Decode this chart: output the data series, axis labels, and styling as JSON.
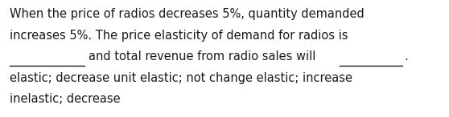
{
  "background_color": "#ffffff",
  "text_color": "#1a1a1a",
  "line0": "When the price of radios decreases 5%, quantity demanded",
  "line1": "increases 5%. The price elasticity of demand for radios is",
  "line2_part1": "and total revenue from radio sales will",
  "line2_period": ".",
  "line3": "elastic; decrease unit elastic; not change elastic; increase",
  "line4": "inelastic; decrease",
  "font_size": 10.5,
  "font_family": "DejaVu Sans",
  "fig_width": 5.58,
  "fig_height": 1.46,
  "dpi": 100
}
